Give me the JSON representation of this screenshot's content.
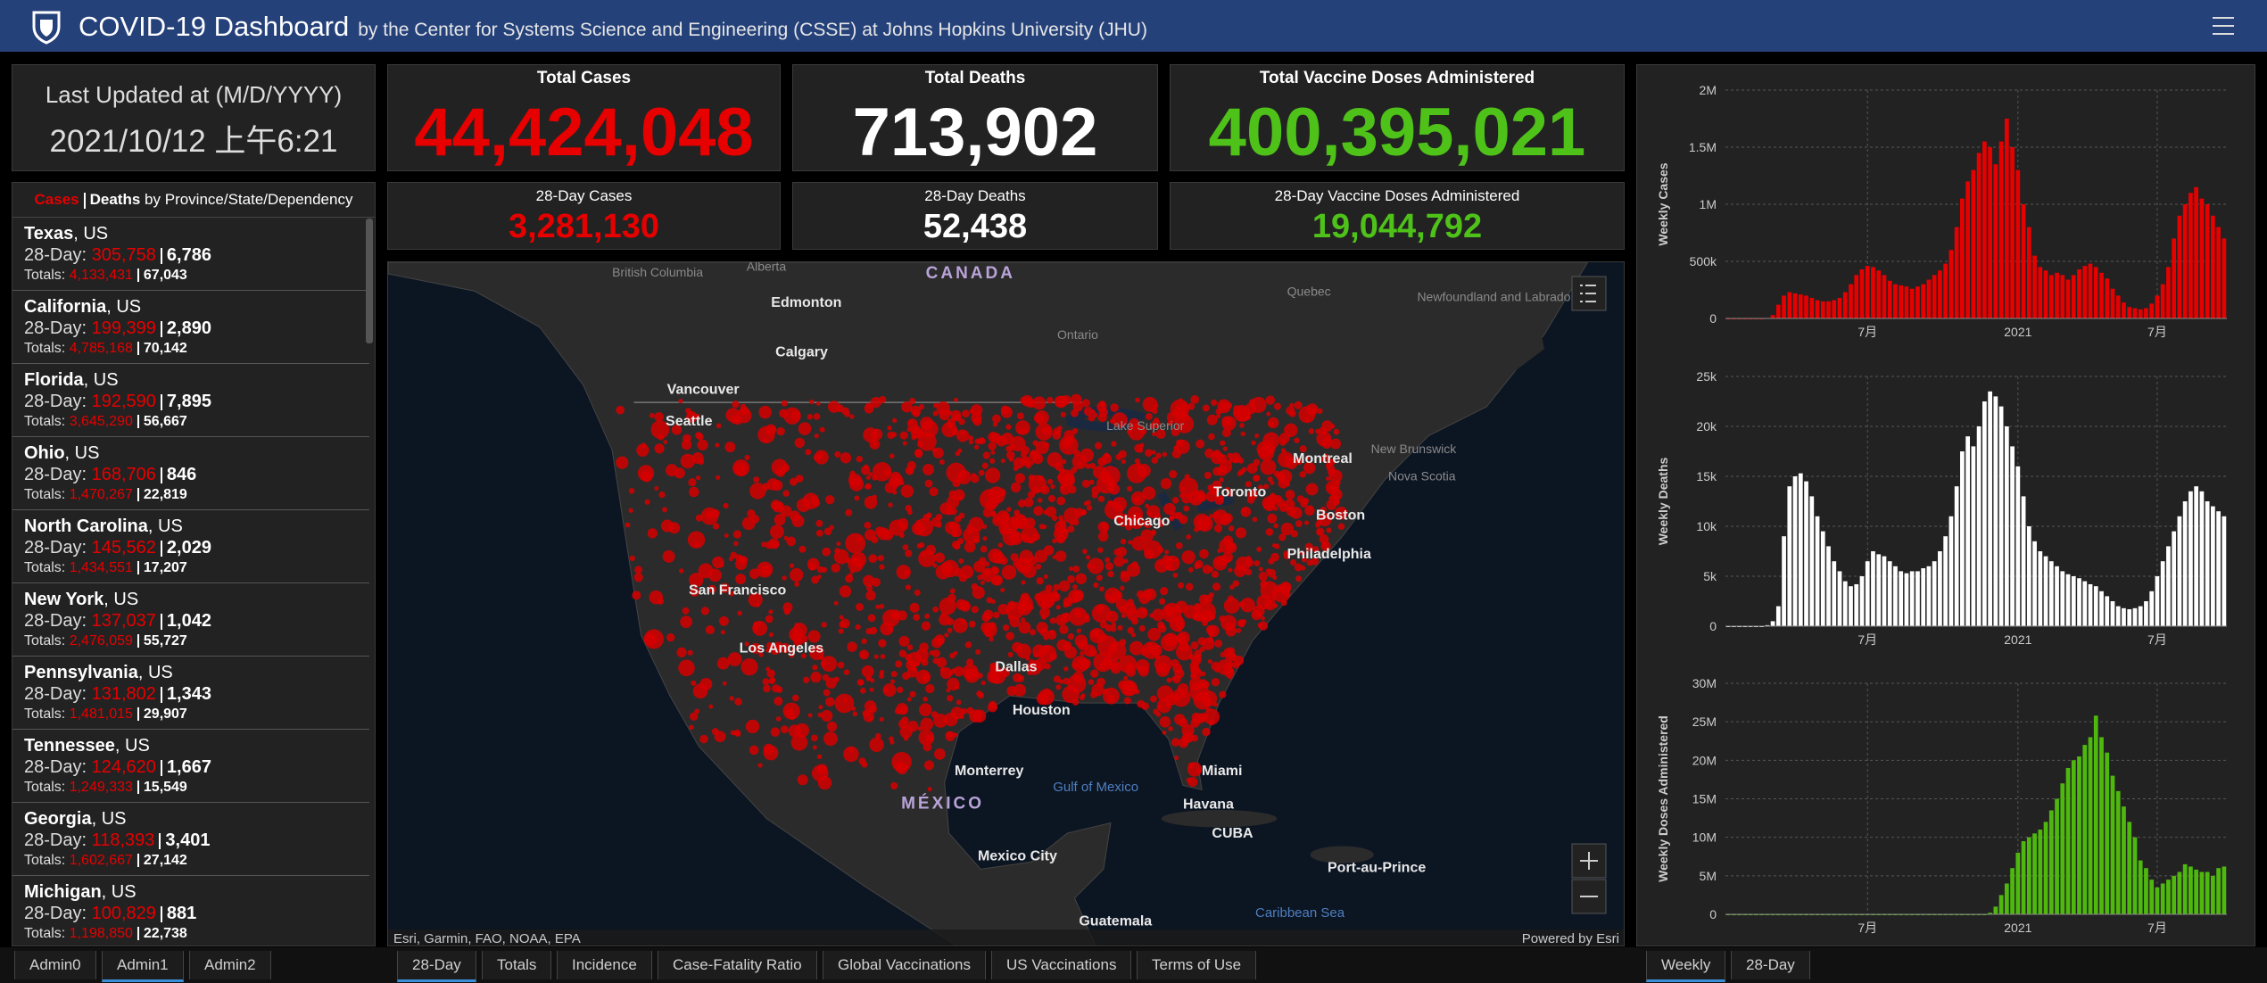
{
  "header": {
    "title": "COVID-19 Dashboard",
    "subtitle": "by the Center for Systems Science and Engineering (CSSE) at Johns Hopkins University (JHU)"
  },
  "updated": {
    "label": "Last Updated at (M/D/YYYY)",
    "value": "2021/10/12 上午6:21"
  },
  "cards": [
    {
      "title": "Total Cases",
      "value": "44,424,048",
      "color": "#e60000"
    },
    {
      "title": "Total Deaths",
      "value": "713,902",
      "color": "#ffffff"
    },
    {
      "title": "Total Vaccine Doses Administered",
      "value": "400,395,021",
      "color": "#4fc21a"
    },
    {
      "title": "28-Day Cases",
      "value": "3,281,130",
      "color": "#e60000"
    },
    {
      "title": "28-Day Deaths",
      "value": "52,438",
      "color": "#ffffff"
    },
    {
      "title": "28-Day Vaccine Doses Administered",
      "value": "19,044,792",
      "color": "#4fc21a"
    }
  ],
  "list": {
    "header": {
      "cases": "Cases",
      "deaths": "Deaths",
      "by": "by Province/State/Dependency"
    },
    "row_labels": {
      "day28": "28-Day:",
      "totals": "Totals:"
    },
    "rows": [
      {
        "name": "Texas",
        "region": ", US",
        "cases_28": "305,758",
        "deaths_28": "6,786",
        "cases_total": "4,133,431",
        "deaths_total": "67,043"
      },
      {
        "name": "California",
        "region": ", US",
        "cases_28": "199,399",
        "deaths_28": "2,890",
        "cases_total": "4,785,168",
        "deaths_total": "70,142"
      },
      {
        "name": "Florida",
        "region": ", US",
        "cases_28": "192,590",
        "deaths_28": "7,895",
        "cases_total": "3,645,290",
        "deaths_total": "56,667"
      },
      {
        "name": "Ohio",
        "region": ", US",
        "cases_28": "168,706",
        "deaths_28": "846",
        "cases_total": "1,470,267",
        "deaths_total": "22,819"
      },
      {
        "name": "North Carolina",
        "region": ", US",
        "cases_28": "145,562",
        "deaths_28": "2,029",
        "cases_total": "1,434,551",
        "deaths_total": "17,207"
      },
      {
        "name": "New York",
        "region": ", US",
        "cases_28": "137,037",
        "deaths_28": "1,042",
        "cases_total": "2,476,059",
        "deaths_total": "55,727"
      },
      {
        "name": "Pennsylvania",
        "region": ", US",
        "cases_28": "131,802",
        "deaths_28": "1,343",
        "cases_total": "1,481,015",
        "deaths_total": "29,907"
      },
      {
        "name": "Tennessee",
        "region": ", US",
        "cases_28": "124,620",
        "deaths_28": "1,667",
        "cases_total": "1,249,333",
        "deaths_total": "15,549"
      },
      {
        "name": "Georgia",
        "region": ", US",
        "cases_28": "118,393",
        "deaths_28": "3,401",
        "cases_total": "1,602,667",
        "deaths_total": "27,142"
      },
      {
        "name": "Michigan",
        "region": ", US",
        "cases_28": "100,829",
        "deaths_28": "881",
        "cases_total": "1,198,850",
        "deaths_total": "22,738"
      }
    ]
  },
  "map": {
    "labels": [
      "CANADA",
      "British Columbia",
      "Alberta",
      "Edmonton",
      "Calgary",
      "Vancouver",
      "Seattle",
      "Ontario",
      "Quebec",
      "Newfoundland and Labrador",
      "Montreal",
      "Toronto",
      "Boston",
      "Chicago",
      "Philadelphia",
      "San Francisco",
      "Los Angeles",
      "Dallas",
      "Houston",
      "Miami",
      "Havana",
      "CUBA",
      "Monterrey",
      "MÉXICO",
      "Mexico City",
      "Gulf of Mexico",
      "Caribbean Sea",
      "Port-au-Prince",
      "Guatemala",
      "Lake Superior",
      "Nova Scotia",
      "New Brunswick"
    ],
    "attribution": "Esri, Garmin, FAO, NOAA, EPA",
    "powered": "Powered by Esri"
  },
  "tabs": {
    "left": [
      "Admin0",
      "Admin1",
      "Admin2"
    ],
    "left_active": 1,
    "middle": [
      "28-Day",
      "Totals",
      "Incidence",
      "Case-Fatality Ratio",
      "Global Vaccinations",
      "US Vaccinations",
      "Terms of Use"
    ],
    "middle_active": 0,
    "right": [
      "Weekly",
      "28-Day"
    ],
    "right_active": 0
  },
  "chart_data": [
    {
      "type": "bar",
      "y_label": "Weekly Cases",
      "color": "#e60000",
      "grid": true,
      "categories": [
        null,
        null,
        null,
        null,
        null,
        null,
        null,
        null,
        null,
        null,
        null,
        null,
        null,
        null,
        null,
        null,
        null,
        null,
        null,
        null,
        null,
        null,
        null,
        null,
        null,
        "7月",
        null,
        null,
        null,
        null,
        null,
        null,
        null,
        null,
        null,
        null,
        null,
        null,
        null,
        null,
        null,
        null,
        null,
        null,
        null,
        null,
        null,
        null,
        null,
        null,
        null,
        null,
        "2021",
        null,
        null,
        null,
        null,
        null,
        null,
        null,
        null,
        null,
        null,
        null,
        null,
        null,
        null,
        null,
        null,
        null,
        null,
        null,
        null,
        null,
        null,
        null,
        null,
        "7月",
        null,
        null,
        null,
        null,
        null,
        null,
        null,
        null,
        null,
        null,
        null,
        null
      ],
      "values": [
        0,
        0,
        0,
        0,
        0,
        0,
        0,
        5000,
        30000,
        120000,
        200000,
        230000,
        220000,
        210000,
        200000,
        180000,
        160000,
        150000,
        150000,
        160000,
        180000,
        230000,
        300000,
        380000,
        430000,
        460000,
        450000,
        420000,
        380000,
        330000,
        300000,
        290000,
        280000,
        260000,
        280000,
        300000,
        340000,
        380000,
        420000,
        480000,
        600000,
        800000,
        1050000,
        1200000,
        1300000,
        1450000,
        1550000,
        1500000,
        1350000,
        1550000,
        1750000,
        1500000,
        1300000,
        1000000,
        800000,
        550000,
        450000,
        420000,
        380000,
        400000,
        380000,
        340000,
        380000,
        430000,
        460000,
        480000,
        450000,
        400000,
        350000,
        260000,
        200000,
        140000,
        100000,
        90000,
        80000,
        90000,
        130000,
        200000,
        300000,
        450000,
        700000,
        900000,
        1000000,
        1100000,
        1150000,
        1050000,
        1000000,
        900000,
        800000,
        700000
      ],
      "ylim": [
        0,
        2000000
      ],
      "yticks": [
        0,
        {
          "value": 500000,
          "label": "500k"
        },
        {
          "value": 1000000,
          "label": "1M"
        },
        {
          "value": 1500000,
          "label": "1.5M"
        },
        {
          "value": 2000000,
          "label": "2M"
        }
      ]
    },
    {
      "type": "bar",
      "y_label": "Weekly Deaths",
      "color": "#ffffff",
      "grid": true,
      "categories": [
        null,
        null,
        null,
        null,
        null,
        null,
        null,
        null,
        null,
        null,
        null,
        null,
        null,
        null,
        null,
        null,
        null,
        null,
        null,
        null,
        null,
        null,
        null,
        null,
        null,
        "7月",
        null,
        null,
        null,
        null,
        null,
        null,
        null,
        null,
        null,
        null,
        null,
        null,
        null,
        null,
        null,
        null,
        null,
        null,
        null,
        null,
        null,
        null,
        null,
        null,
        null,
        null,
        "2021",
        null,
        null,
        null,
        null,
        null,
        null,
        null,
        null,
        null,
        null,
        null,
        null,
        null,
        null,
        null,
        null,
        null,
        null,
        null,
        null,
        null,
        null,
        null,
        null,
        "7月",
        null,
        null,
        null,
        null,
        null,
        null,
        null,
        null,
        null,
        null,
        null,
        null
      ],
      "values": [
        0,
        0,
        0,
        0,
        0,
        0,
        0,
        100,
        500,
        2000,
        9000,
        14000,
        15000,
        15300,
        14500,
        13000,
        11000,
        9500,
        8000,
        6500,
        5500,
        4500,
        4000,
        4200,
        5000,
        6500,
        7500,
        7200,
        7000,
        6500,
        6000,
        5500,
        5300,
        5500,
        5500,
        5800,
        6000,
        6500,
        7500,
        9000,
        11000,
        14000,
        17500,
        19000,
        18000,
        20000,
        22500,
        23500,
        23000,
        22000,
        20000,
        18000,
        16000,
        13000,
        10000,
        8500,
        7500,
        7000,
        6500,
        6000,
        5500,
        5200,
        5000,
        4800,
        4500,
        4200,
        4000,
        3500,
        3000,
        2500,
        2000,
        1800,
        1700,
        1800,
        2000,
        2500,
        3500,
        5000,
        6500,
        8000,
        9500,
        11000,
        12500,
        13500,
        14000,
        13500,
        12500,
        12000,
        11500,
        11000
      ],
      "ylim": [
        0,
        25000
      ],
      "yticks": [
        0,
        {
          "value": 5000,
          "label": "5k"
        },
        {
          "value": 10000,
          "label": "10k"
        },
        {
          "value": 15000,
          "label": "15k"
        },
        {
          "value": 20000,
          "label": "20k"
        },
        {
          "value": 25000,
          "label": "25k"
        }
      ]
    },
    {
      "type": "bar",
      "y_label": "Weekly Doses Administered",
      "color": "#4fb80f",
      "grid": true,
      "categories": [
        null,
        null,
        null,
        null,
        null,
        null,
        null,
        null,
        null,
        null,
        null,
        null,
        null,
        null,
        null,
        null,
        null,
        null,
        null,
        null,
        null,
        null,
        null,
        null,
        null,
        "7月",
        null,
        null,
        null,
        null,
        null,
        null,
        null,
        null,
        null,
        null,
        null,
        null,
        null,
        null,
        null,
        null,
        null,
        null,
        null,
        null,
        null,
        null,
        null,
        null,
        null,
        null,
        "2021",
        null,
        null,
        null,
        null,
        null,
        null,
        null,
        null,
        null,
        null,
        null,
        null,
        null,
        null,
        null,
        null,
        null,
        null,
        null,
        null,
        null,
        null,
        null,
        null,
        "7月",
        null,
        null,
        null,
        null,
        null,
        null,
        null,
        null,
        null,
        null,
        null,
        null
      ],
      "values": [
        0,
        0,
        0,
        0,
        0,
        0,
        0,
        0,
        0,
        0,
        0,
        0,
        0,
        0,
        0,
        0,
        0,
        0,
        0,
        0,
        0,
        0,
        0,
        0,
        0,
        0,
        0,
        0,
        0,
        0,
        0,
        0,
        0,
        0,
        0,
        0,
        0,
        0,
        0,
        0,
        0,
        0,
        0,
        0,
        0,
        0,
        0,
        200000,
        1000000,
        2500000,
        4000000,
        6000000,
        8000000,
        9500000,
        10000000,
        10500000,
        11000000,
        12000000,
        13500000,
        15000000,
        17000000,
        19000000,
        20000000,
        20500000,
        22000000,
        23000000,
        25800000,
        23000000,
        21000000,
        18000000,
        16000000,
        14000000,
        12000000,
        10000000,
        7000000,
        6000000,
        4500000,
        3500000,
        4000000,
        4500000,
        5000000,
        5500000,
        6500000,
        6200000,
        5800000,
        5500000,
        5500000,
        5000000,
        6000000,
        6200000
      ],
      "ylim": [
        0,
        30000000
      ],
      "yticks": [
        0,
        {
          "value": 5000000,
          "label": "5M"
        },
        {
          "value": 10000000,
          "label": "10M"
        },
        {
          "value": 15000000,
          "label": "15M"
        },
        {
          "value": 20000000,
          "label": "20M"
        },
        {
          "value": 25000000,
          "label": "25M"
        },
        {
          "value": 30000000,
          "label": "30M"
        }
      ]
    }
  ]
}
